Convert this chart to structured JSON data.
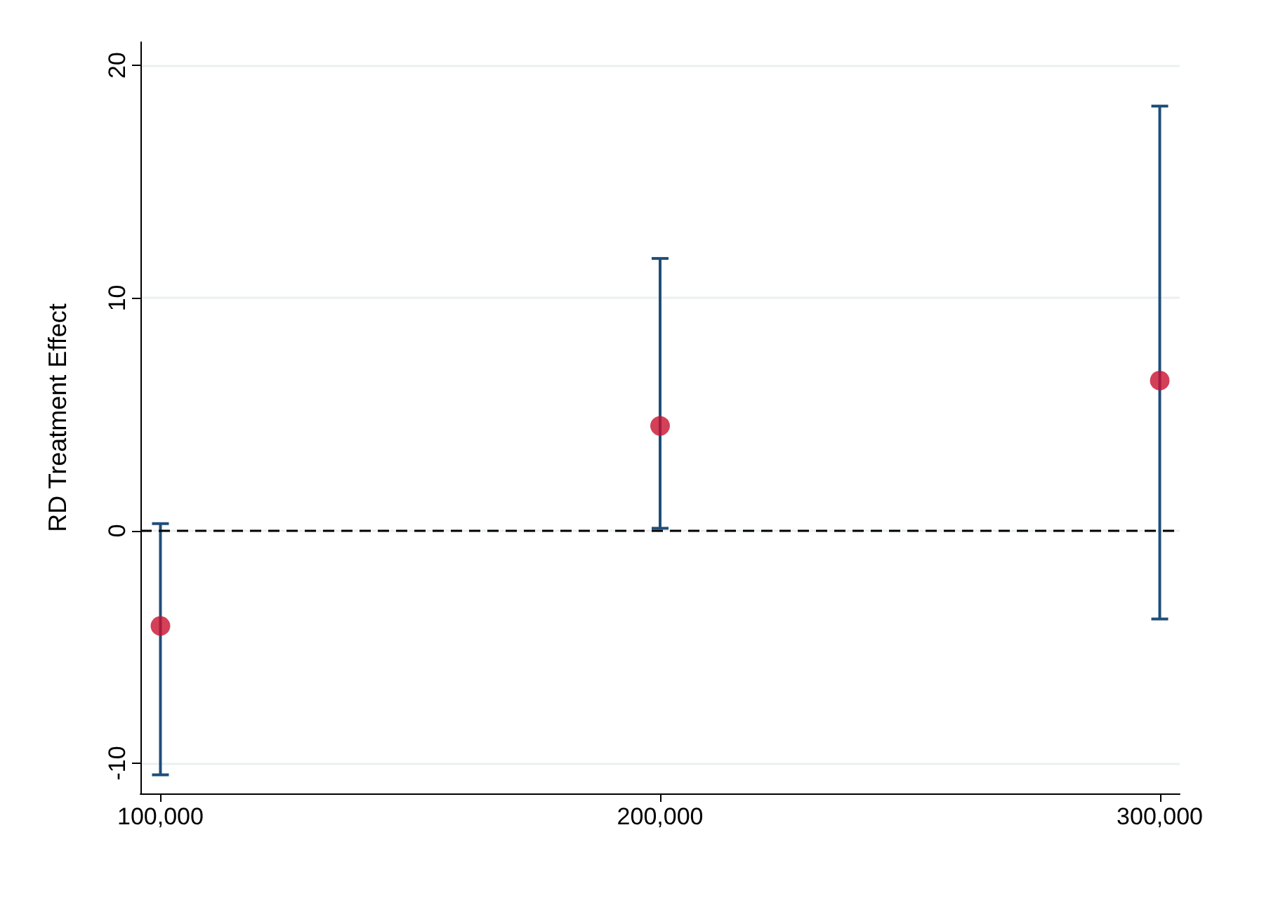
{
  "chart_data": {
    "type": "scatter",
    "ylabel": "RD Treatment Effect",
    "x": [
      100000,
      200000,
      300000
    ],
    "series": [
      {
        "color": "#c8102e",
        "values": [
          -4.1,
          4.5,
          6.45
        ],
        "errors": [
          [
            -10.5,
            0.3
          ],
          [
            0.1,
            11.7
          ],
          [
            -3.8,
            18.25
          ]
        ]
      }
    ],
    "xlim": [
      96000,
      304000
    ],
    "xticks": [
      {
        "value": 100000,
        "label": "100,000"
      },
      {
        "value": 200000,
        "label": "200,000"
      },
      {
        "value": 300000,
        "label": "300,000"
      }
    ],
    "ylim": [
      -11.3,
      21
    ],
    "yticks": [
      -10,
      0,
      10,
      20
    ],
    "ref_lines": [
      {
        "axis": "y",
        "value": 0,
        "color": "#000000",
        "line_style": "dashed"
      }
    ],
    "grid": "y",
    "marker": "circle"
  }
}
